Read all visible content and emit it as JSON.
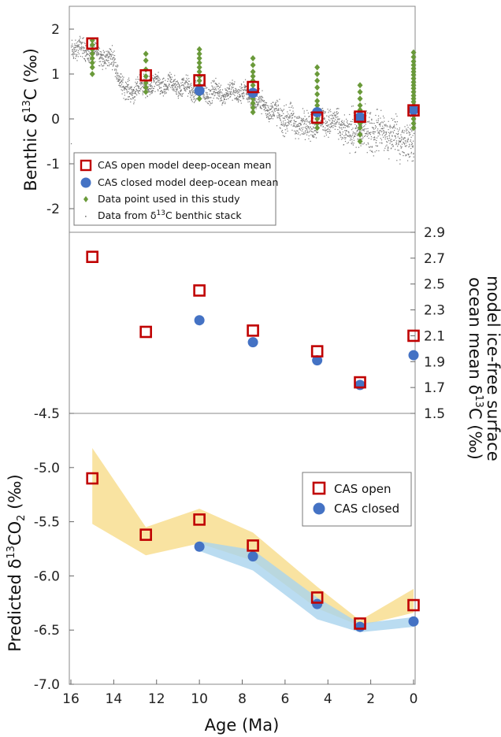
{
  "chart_data": [
    {
      "panel": "top",
      "type": "scatter",
      "ylabel_parts": [
        "Benthic δ",
        "13",
        "C (‰)"
      ],
      "ylim": [
        -2.5,
        2.5
      ],
      "yticks": [
        2,
        1,
        0,
        -1,
        -2
      ],
      "ytick_labels": [
        "2",
        "1",
        "0",
        "-1",
        "-2"
      ],
      "xlim": [
        16,
        0
      ],
      "series": [
        {
          "name": "CAS open model deep-ocean mean",
          "marker": "open-square",
          "color": "#c00000",
          "x": [
            15,
            12.5,
            10,
            7.5,
            4.5,
            2.5,
            0
          ],
          "values": [
            1.68,
            0.97,
            0.86,
            0.71,
            0.03,
            0.05,
            0.19
          ]
        },
        {
          "name": "CAS closed model deep-ocean mean",
          "marker": "filled-circle",
          "color": "#4472c4",
          "x": [
            10,
            7.5,
            4.5,
            2.5,
            0
          ],
          "values": [
            0.63,
            0.58,
            0.15,
            0.04,
            0.2
          ]
        },
        {
          "name": "Data point used in this study",
          "marker": "diamond",
          "color": "#6a9a3a",
          "groups": [
            {
              "x": 15,
              "values": [
                1.75,
                1.65,
                1.55,
                1.45,
                1.35,
                1.25,
                1.15,
                1.0
              ]
            },
            {
              "x": 12.5,
              "values": [
                1.45,
                1.3,
                1.1,
                0.95,
                0.8,
                0.7,
                0.6
              ]
            },
            {
              "x": 10,
              "values": [
                1.55,
                1.45,
                1.35,
                1.25,
                1.15,
                1.05,
                0.95,
                0.85,
                0.75,
                0.65,
                0.55,
                0.45
              ]
            },
            {
              "x": 7.5,
              "values": [
                1.35,
                1.2,
                1.05,
                0.95,
                0.85,
                0.75,
                0.65,
                0.55,
                0.45,
                0.35,
                0.25,
                0.15
              ]
            },
            {
              "x": 4.5,
              "values": [
                1.15,
                1.0,
                0.85,
                0.7,
                0.55,
                0.4,
                0.3,
                0.2,
                0.1,
                0.0,
                -0.1,
                -0.2
              ]
            },
            {
              "x": 2.5,
              "values": [
                0.75,
                0.6,
                0.45,
                0.3,
                0.2,
                0.1,
                0.0,
                -0.1,
                -0.2,
                -0.35,
                -0.5
              ]
            },
            {
              "x": 0,
              "values": [
                1.48,
                1.38,
                1.28,
                1.2,
                1.12,
                1.05,
                0.98,
                0.9,
                0.82,
                0.75,
                0.68,
                0.6,
                0.52,
                0.45,
                0.38,
                0.3,
                0.22,
                0.15,
                0.08,
                0.0,
                -0.1,
                -0.2
              ]
            }
          ]
        },
        {
          "name_parts": [
            "Data from δ",
            "13",
            "C benthic stack"
          ],
          "marker": "dot",
          "color": "#777777",
          "trend_x": [
            16,
            15,
            14,
            13.5,
            12.5,
            11,
            10,
            8,
            7.5,
            6,
            5,
            4,
            3,
            2,
            1,
            0
          ],
          "trend_y": [
            1.6,
            1.5,
            1.3,
            0.6,
            0.75,
            0.75,
            0.6,
            0.6,
            0.45,
            0.0,
            -0.15,
            0.0,
            -0.3,
            -0.25,
            -0.35,
            -0.6
          ]
        }
      ]
    },
    {
      "panel": "middle",
      "type": "scatter",
      "ylabel_lines": [
        "model ice-free surface",
        "ocean mean δ13C (‰)"
      ],
      "ylabel_line2_parts": [
        "ocean mean δ",
        "13",
        "C (‰)"
      ],
      "ylim": [
        1.5,
        2.9
      ],
      "yticks": [
        2.9,
        2.7,
        2.5,
        2.3,
        2.1,
        1.9,
        1.7,
        1.5
      ],
      "ytick_labels": [
        "2.9",
        "2.7",
        "2.5",
        "2.3",
        "2.1",
        "1.9",
        "1.7",
        "1.5"
      ],
      "xlim": [
        16,
        0
      ],
      "series": [
        {
          "name": "CAS open",
          "marker": "open-square",
          "color": "#c00000",
          "x": [
            15,
            12.5,
            10,
            7.5,
            4.5,
            2.5,
            0
          ],
          "values": [
            2.71,
            2.13,
            2.45,
            2.14,
            1.98,
            1.74,
            2.1
          ]
        },
        {
          "name": "CAS closed",
          "marker": "filled-circle",
          "color": "#4472c4",
          "x": [
            10,
            7.5,
            4.5,
            2.5,
            0
          ],
          "values": [
            2.22,
            2.05,
            1.91,
            1.72,
            1.95
          ]
        }
      ]
    },
    {
      "panel": "bottom",
      "type": "scatter",
      "ylabel_parts": [
        "Predicted δ",
        "13",
        "CO",
        "2",
        " (‰)"
      ],
      "xlabel": "Age (Ma)",
      "ylim": [
        -7.0,
        -4.5
      ],
      "yticks": [
        -4.5,
        -5.0,
        -5.5,
        -6.0,
        -6.5,
        -7.0
      ],
      "ytick_labels": [
        "-4.5",
        "-5.0",
        "-5.5",
        "-6.0",
        "-6.5",
        "-7.0"
      ],
      "xlim": [
        16,
        0
      ],
      "xticks": [
        16,
        14,
        12,
        10,
        8,
        6,
        4,
        2,
        0
      ],
      "xtick_labels": [
        "16",
        "14",
        "12",
        "10",
        "8",
        "6",
        "4",
        "2",
        "0"
      ],
      "legend_position": "top-right",
      "series": [
        {
          "name": "CAS open",
          "marker": "open-square",
          "color": "#c00000",
          "x": [
            15,
            12.5,
            10,
            7.5,
            4.5,
            2.5,
            0
          ],
          "values": [
            -5.1,
            -5.62,
            -5.48,
            -5.72,
            -6.2,
            -6.44,
            -6.27
          ]
        },
        {
          "name": "CAS closed",
          "marker": "filled-circle",
          "color": "#4472c4",
          "x": [
            10,
            7.5,
            4.5,
            2.5,
            0
          ],
          "values": [
            -5.73,
            -5.82,
            -6.26,
            -6.47,
            -6.42
          ]
        }
      ],
      "bands": [
        {
          "series": "CAS open",
          "color": "#f7dc8a",
          "x": [
            15,
            12.5,
            10,
            7.5,
            4.5,
            2.5,
            0
          ],
          "upper": [
            -4.82,
            -5.55,
            -5.38,
            -5.6,
            -6.1,
            -6.41,
            -6.12
          ],
          "lower": [
            -5.52,
            -5.81,
            -5.7,
            -5.86,
            -6.3,
            -6.46,
            -6.34
          ]
        },
        {
          "series": "CAS closed",
          "color": "#a9d3ee",
          "x": [
            10,
            7.5,
            4.5,
            2.5,
            0
          ],
          "upper": [
            -5.68,
            -5.76,
            -6.2,
            -6.44,
            -6.38
          ],
          "lower": [
            -5.77,
            -5.95,
            -6.4,
            -6.52,
            -6.47
          ]
        }
      ]
    }
  ]
}
